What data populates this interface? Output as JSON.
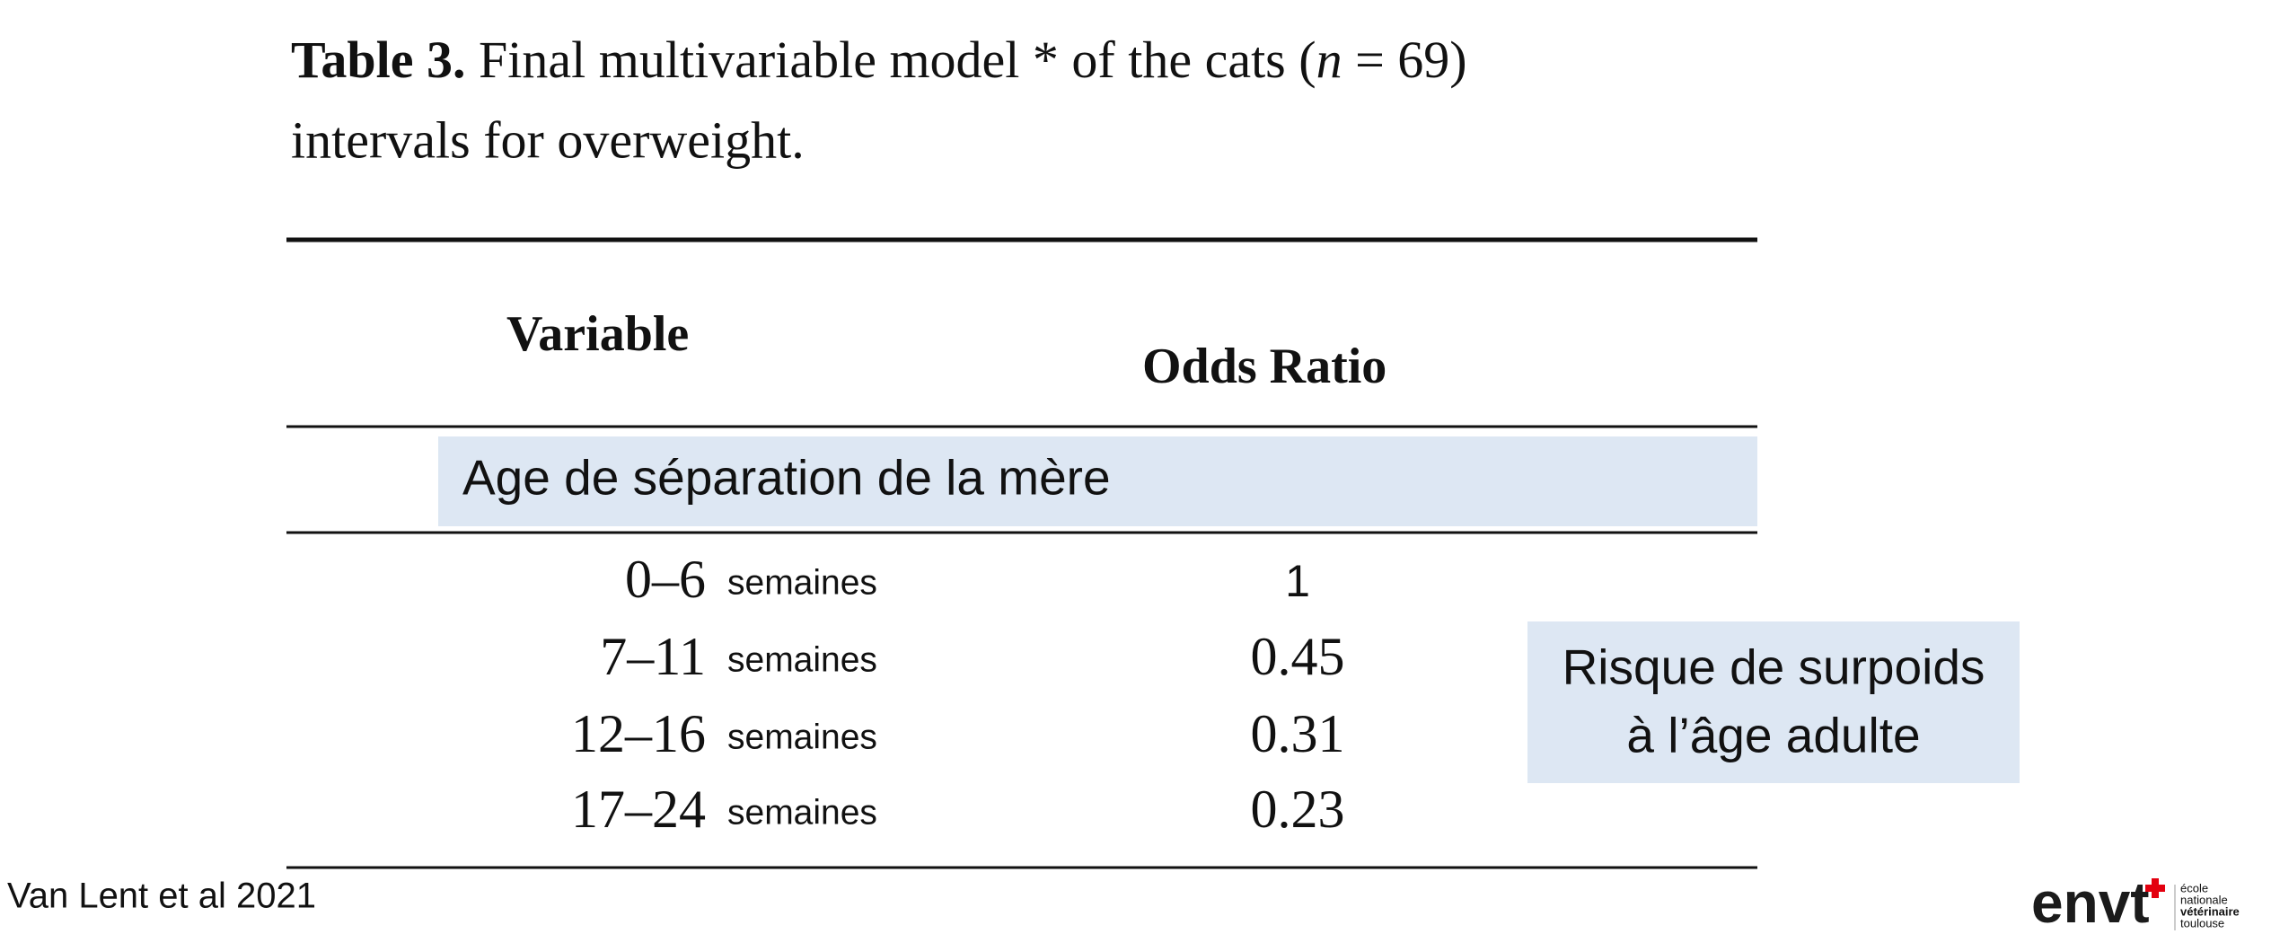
{
  "header": {
    "label": "Table 3.",
    "title_start": "Final multivariable model * of the cats (",
    "n_symbol": "n",
    "title_end": " = 69)",
    "title_line2": "intervals for overweight."
  },
  "table": {
    "columns": [
      "Variable",
      "Odds Ratio"
    ],
    "section": "Age de séparation de la mère",
    "rows": [
      [
        "0–6",
        "semaines",
        "1"
      ],
      [
        "7–11",
        "semaines",
        "0.45"
      ],
      [
        "12–16",
        "semaines",
        "0.31"
      ],
      [
        "17–24",
        "semaines",
        "0.23"
      ]
    ]
  },
  "callout": {
    "lines": [
      "Risque de surpoids",
      "à l’âge adulte"
    ]
  },
  "footer": {
    "citation": "Van Lent et al 2021",
    "logo": "envt",
    "logo_caption": [
      "école",
      "nationale",
      "vétérinaire",
      "toulouse"
    ]
  }
}
